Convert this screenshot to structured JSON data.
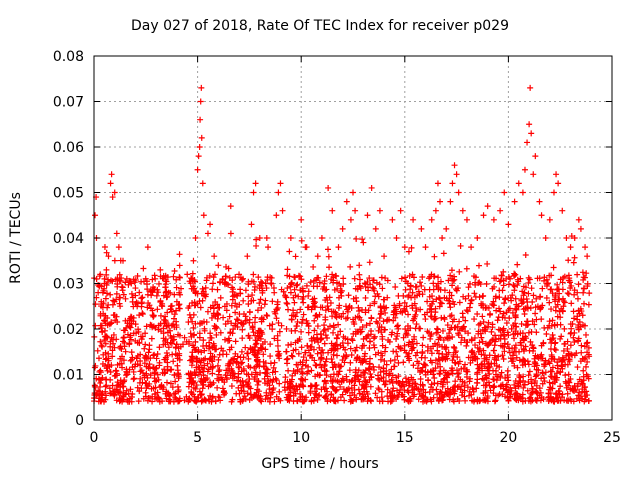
{
  "chart_data": {
    "type": "scatter",
    "title": "Day 027 of 2018, Rate Of TEC Index for receiver p029",
    "xlabel": "GPS time / hours",
    "ylabel": "ROTI / TECUs",
    "xlim": [
      0,
      25
    ],
    "ylim": [
      0,
      0.08
    ],
    "xticks": [
      0,
      5,
      10,
      15,
      20,
      25
    ],
    "yticks": [
      0,
      0.01,
      0.02,
      0.03,
      0.04,
      0.05,
      0.06,
      0.07,
      0.08
    ],
    "xtick_labels": [
      "0",
      "5",
      "10",
      "15",
      "20",
      "25"
    ],
    "ytick_labels": [
      "0",
      "0.01",
      "0.02",
      "0.03",
      "0.04",
      "0.05",
      "0.06",
      "0.07",
      "0.08"
    ],
    "grid": true,
    "marker": "+",
    "color": "#ff0000",
    "series_points": [
      [
        0.05,
        0.045
      ],
      [
        0.1,
        0.049
      ],
      [
        0.12,
        0.04
      ],
      [
        0.2,
        0.028
      ],
      [
        0.3,
        0.032
      ],
      [
        0.35,
        0.026
      ],
      [
        0.5,
        0.03
      ],
      [
        0.8,
        0.052
      ],
      [
        0.85,
        0.054
      ],
      [
        0.9,
        0.049
      ],
      [
        1.0,
        0.05
      ],
      [
        1.1,
        0.041
      ],
      [
        1.2,
        0.038
      ],
      [
        1.4,
        0.035
      ],
      [
        0.7,
        0.036
      ],
      [
        0.6,
        0.033
      ],
      [
        1.8,
        0.03
      ],
      [
        2.0,
        0.029
      ],
      [
        2.6,
        0.038
      ],
      [
        3.2,
        0.033
      ],
      [
        3.6,
        0.028
      ],
      [
        4.0,
        0.026
      ],
      [
        4.5,
        0.032
      ],
      [
        4.8,
        0.035
      ],
      [
        4.9,
        0.04
      ],
      [
        5.0,
        0.055
      ],
      [
        5.05,
        0.058
      ],
      [
        5.1,
        0.06
      ],
      [
        5.12,
        0.066
      ],
      [
        5.15,
        0.07
      ],
      [
        5.18,
        0.073
      ],
      [
        5.2,
        0.062
      ],
      [
        5.25,
        0.052
      ],
      [
        5.3,
        0.045
      ],
      [
        5.5,
        0.041
      ],
      [
        5.6,
        0.043
      ],
      [
        5.8,
        0.036
      ],
      [
        6.0,
        0.034
      ],
      [
        6.2,
        0.031
      ],
      [
        6.6,
        0.047
      ],
      [
        7.0,
        0.032
      ],
      [
        7.4,
        0.036
      ],
      [
        7.6,
        0.043
      ],
      [
        7.7,
        0.05
      ],
      [
        7.8,
        0.052
      ],
      [
        8.0,
        0.04
      ],
      [
        8.4,
        0.038
      ],
      [
        8.8,
        0.045
      ],
      [
        8.9,
        0.05
      ],
      [
        9.0,
        0.052
      ],
      [
        9.1,
        0.046
      ],
      [
        9.5,
        0.04
      ],
      [
        10.0,
        0.044
      ],
      [
        10.2,
        0.038
      ],
      [
        10.8,
        0.036
      ],
      [
        11.0,
        0.04
      ],
      [
        11.3,
        0.051
      ],
      [
        11.5,
        0.046
      ],
      [
        11.8,
        0.038
      ],
      [
        12.0,
        0.042
      ],
      [
        12.2,
        0.048
      ],
      [
        12.4,
        0.044
      ],
      [
        12.5,
        0.05
      ],
      [
        12.6,
        0.046
      ],
      [
        12.8,
        0.034
      ],
      [
        13.0,
        0.039
      ],
      [
        13.2,
        0.045
      ],
      [
        13.4,
        0.051
      ],
      [
        13.6,
        0.042
      ],
      [
        13.8,
        0.046
      ],
      [
        14.0,
        0.036
      ],
      [
        14.4,
        0.044
      ],
      [
        14.6,
        0.04
      ],
      [
        14.8,
        0.046
      ],
      [
        15.0,
        0.038
      ],
      [
        15.2,
        0.037
      ],
      [
        15.4,
        0.044
      ],
      [
        15.8,
        0.042
      ],
      [
        16.0,
        0.038
      ],
      [
        16.3,
        0.044
      ],
      [
        16.5,
        0.046
      ],
      [
        16.6,
        0.052
      ],
      [
        16.7,
        0.048
      ],
      [
        16.8,
        0.04
      ],
      [
        17.0,
        0.042
      ],
      [
        17.2,
        0.048
      ],
      [
        17.3,
        0.052
      ],
      [
        17.4,
        0.056
      ],
      [
        17.5,
        0.054
      ],
      [
        17.6,
        0.05
      ],
      [
        17.8,
        0.046
      ],
      [
        18.0,
        0.044
      ],
      [
        18.2,
        0.038
      ],
      [
        18.5,
        0.04
      ],
      [
        18.8,
        0.045
      ],
      [
        19.0,
        0.047
      ],
      [
        19.3,
        0.044
      ],
      [
        19.6,
        0.046
      ],
      [
        19.8,
        0.05
      ],
      [
        20.0,
        0.043
      ],
      [
        20.3,
        0.048
      ],
      [
        20.5,
        0.052
      ],
      [
        20.7,
        0.05
      ],
      [
        20.8,
        0.055
      ],
      [
        20.9,
        0.061
      ],
      [
        21.0,
        0.065
      ],
      [
        21.05,
        0.073
      ],
      [
        21.1,
        0.063
      ],
      [
        21.2,
        0.054
      ],
      [
        21.3,
        0.058
      ],
      [
        21.5,
        0.048
      ],
      [
        21.6,
        0.045
      ],
      [
        21.8,
        0.04
      ],
      [
        22.0,
        0.044
      ],
      [
        22.2,
        0.05
      ],
      [
        22.3,
        0.054
      ],
      [
        22.4,
        0.052
      ],
      [
        22.6,
        0.046
      ],
      [
        22.8,
        0.04
      ],
      [
        23.0,
        0.038
      ],
      [
        23.2,
        0.04
      ],
      [
        23.4,
        0.044
      ],
      [
        23.5,
        0.042
      ],
      [
        23.7,
        0.038
      ],
      [
        23.8,
        0.036
      ]
    ]
  }
}
